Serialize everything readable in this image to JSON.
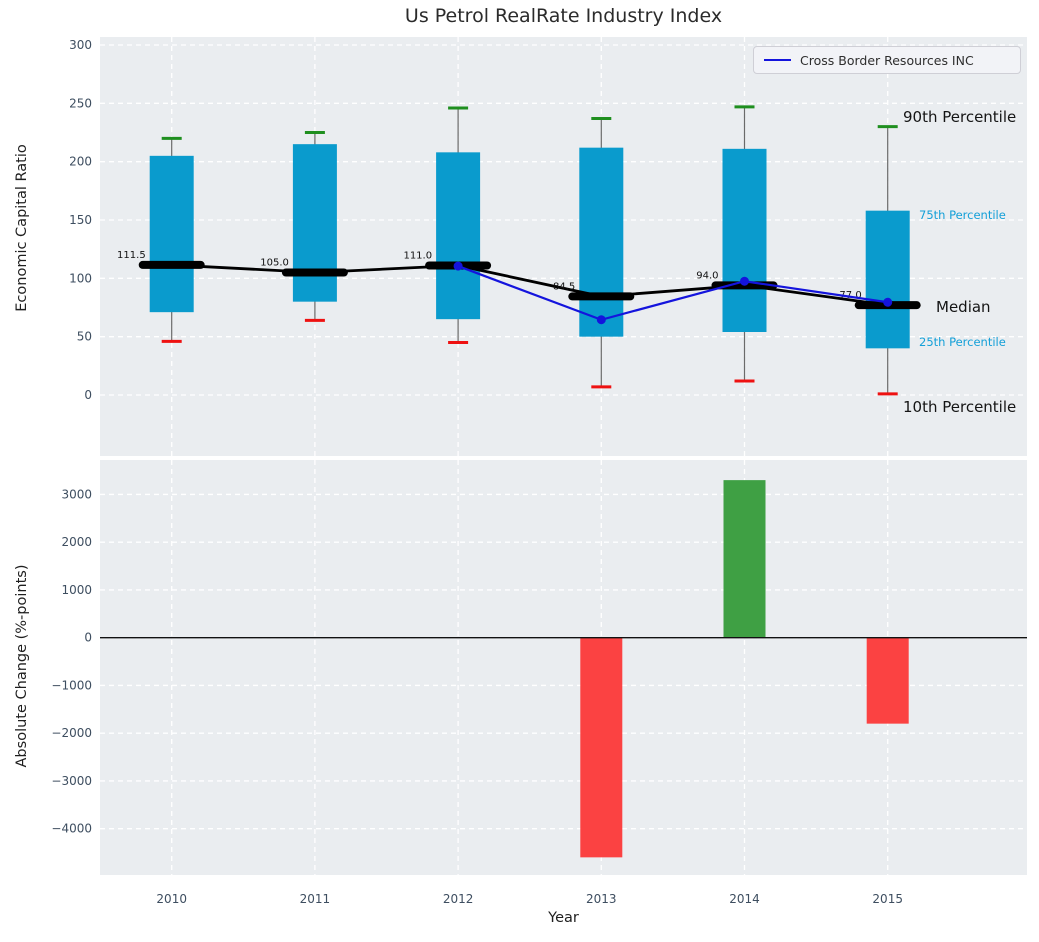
{
  "title": "Us Petrol RealRate Industry Index",
  "legend": {
    "label": "Cross Border Resources INC",
    "line_color": "#1414dd"
  },
  "annotations": {
    "p90": "90th Percentile",
    "p75": "75th Percentile",
    "median": "Median",
    "p25": "25th Percentile",
    "p10": "10th Percentile"
  },
  "colors": {
    "axes_bg": "#eaedf0",
    "grid": "#ffffff",
    "box_fill": "#0a9bcd",
    "whisker": "#6a6a6a",
    "cap_top": "#1f8f1f",
    "cap_bottom": "#ee1111",
    "median": "#000000",
    "company_line": "#1414dd",
    "bar_positive": "#3fa044",
    "bar_negative": "#fb4242",
    "tick_label": "#3e4e60",
    "zero_line": "#111111"
  },
  "chart_data": [
    {
      "type": "box",
      "title": "Us Petrol RealRate Industry Index",
      "xlabel": "Year",
      "ylabel": "Economic Capital Ratio",
      "categories": [
        "2010",
        "2011",
        "2012",
        "2013",
        "2014",
        "2015"
      ],
      "yticks": [
        0,
        50,
        100,
        150,
        200,
        250,
        300
      ],
      "ylim": [
        -52,
        307
      ],
      "grid": true,
      "legend_position": "upper right",
      "series": [
        {
          "name": "90th Percentile",
          "values": [
            220,
            225,
            246,
            237,
            247,
            230
          ]
        },
        {
          "name": "75th Percentile",
          "values": [
            205,
            215,
            208,
            212,
            211,
            158
          ]
        },
        {
          "name": "Median",
          "values": [
            111.5,
            105.0,
            111.0,
            84.5,
            94.0,
            77.0
          ]
        },
        {
          "name": "25th Percentile",
          "values": [
            71,
            80,
            65,
            50,
            54,
            40
          ]
        },
        {
          "name": "10th Percentile",
          "values": [
            46,
            64,
            45,
            7,
            12,
            1
          ]
        }
      ],
      "median_labels": [
        "111.5",
        "105.0",
        "111.0",
        "84.5",
        "94.0",
        "77.0"
      ],
      "company_line": {
        "name": "Cross Border Resources INC",
        "categories": [
          "2012",
          "2013",
          "2014",
          "2015"
        ],
        "values": [
          110.5,
          64.5,
          97.5,
          79.5
        ]
      }
    },
    {
      "type": "bar",
      "xlabel": "Year",
      "ylabel": "Absolute Change (%-points)",
      "categories": [
        "2010",
        "2011",
        "2012",
        "2013",
        "2014",
        "2015"
      ],
      "values": [
        null,
        null,
        null,
        -4600,
        3300,
        -1800
      ],
      "yticks": [
        3000,
        2000,
        1000,
        0,
        -1000,
        -2000,
        -3000,
        -4000
      ],
      "ylim": [
        -4970,
        3720
      ],
      "zero_line": true,
      "grid": true
    }
  ]
}
